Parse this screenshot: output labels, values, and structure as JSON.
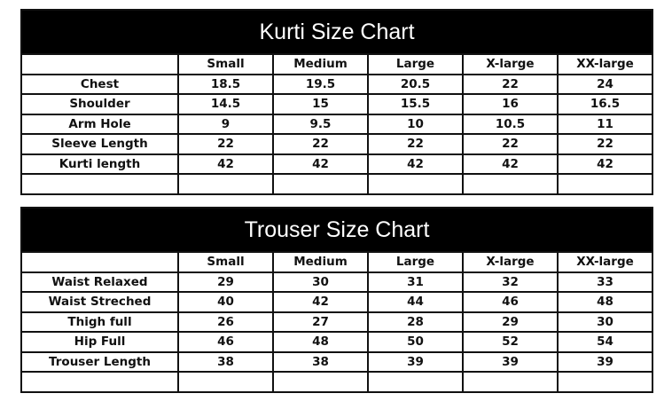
{
  "kurti": {
    "title": "Kurti Size Chart",
    "sizes": [
      "Small",
      "Medium",
      "Large",
      "X-large",
      "XX-large"
    ],
    "rows": [
      {
        "label": "Chest",
        "values": [
          "18.5",
          "19.5",
          "20.5",
          "22",
          "24"
        ]
      },
      {
        "label": "Shoulder",
        "values": [
          "14.5",
          "15",
          "15.5",
          "16",
          "16.5"
        ]
      },
      {
        "label": "Arm Hole",
        "values": [
          "9",
          "9.5",
          "10",
          "10.5",
          "11"
        ]
      },
      {
        "label": "Sleeve Length",
        "values": [
          "22",
          "22",
          "22",
          "22",
          "22"
        ]
      },
      {
        "label": "Kurti length",
        "values": [
          "42",
          "42",
          "42",
          "42",
          "42"
        ]
      }
    ]
  },
  "trouser": {
    "title": "Trouser Size Chart",
    "sizes": [
      "Small",
      "Medium",
      "Large",
      "X-large",
      "XX-large"
    ],
    "rows": [
      {
        "label": "Waist Relaxed",
        "values": [
          "29",
          "30",
          "31",
          "32",
          "33"
        ]
      },
      {
        "label": "Waist Streched",
        "values": [
          "40",
          "42",
          "44",
          "46",
          "48"
        ]
      },
      {
        "label": "Thigh full",
        "values": [
          "26",
          "27",
          "28",
          "29",
          "30"
        ]
      },
      {
        "label": "Hip Full",
        "values": [
          "46",
          "48",
          "50",
          "52",
          "54"
        ]
      },
      {
        "label": "Trouser Length",
        "values": [
          "38",
          "38",
          "39",
          "39",
          "39"
        ]
      }
    ]
  }
}
